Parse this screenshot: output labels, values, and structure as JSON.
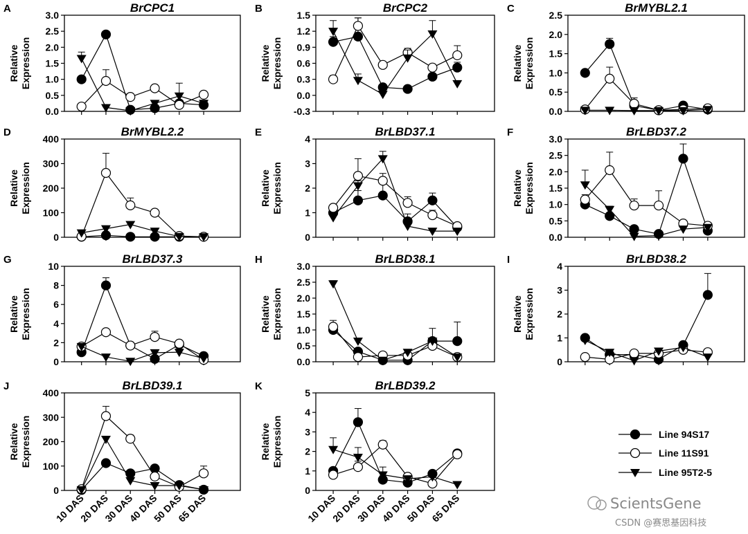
{
  "x_categories": [
    "10 DAS",
    "20 DAS",
    "30 DAS",
    "40 DAS",
    "50 DAS",
    "65 DAS"
  ],
  "y_label_line1": "Relative",
  "y_label_line2": "Expression",
  "legend": [
    {
      "name": "Line 94S17",
      "marker": "filled-circle"
    },
    {
      "name": "Line 11S91",
      "marker": "open-circle"
    },
    {
      "name": "Line 95T2-5",
      "marker": "filled-triangle-down"
    }
  ],
  "watermark": {
    "logo_text": "ScientsGene",
    "sub_text": "CSDN @赛思基因科技"
  },
  "chart_data": [
    {
      "type": "line",
      "letter": "A",
      "title": "BrCPC1",
      "ylim": [
        0,
        3
      ],
      "yticks": [
        "0.0",
        "0.5",
        "1.0",
        "1.5",
        "2.0",
        "2.5",
        "3.0"
      ],
      "series": [
        {
          "name": "Line 94S17",
          "values": [
            1.0,
            2.4,
            0.05,
            0.1,
            0.25,
            0.2
          ],
          "err": [
            0.05,
            0.05,
            0.03,
            0.05,
            0.1,
            0.05
          ]
        },
        {
          "name": "Line 11S91",
          "values": [
            0.15,
            0.95,
            0.45,
            0.72,
            0.2,
            0.52
          ],
          "err": [
            0.03,
            0.35,
            0.05,
            0.05,
            0.1,
            0.05
          ]
        },
        {
          "name": "Line 95T2-5",
          "values": [
            1.65,
            0.12,
            0.02,
            0.25,
            0.48,
            0.25
          ],
          "err": [
            0.2,
            0.02,
            0.02,
            0.05,
            0.4,
            0.1
          ]
        }
      ]
    },
    {
      "type": "line",
      "letter": "B",
      "title": "BrCPC2",
      "ylim": [
        -0.3,
        1.5
      ],
      "yticks": [
        "-0.3",
        "0.0",
        "0.3",
        "0.6",
        "0.9",
        "1.2",
        "1.5"
      ],
      "series": [
        {
          "name": "Line 94S17",
          "values": [
            1.0,
            1.1,
            0.15,
            0.12,
            0.35,
            0.52
          ],
          "err": [
            0.1,
            0.35,
            0.05,
            0.03,
            0.05,
            0.1
          ]
        },
        {
          "name": "Line 11S91",
          "values": [
            0.3,
            1.3,
            0.57,
            0.8,
            0.52,
            0.75
          ],
          "err": [
            0.07,
            0.15,
            0.05,
            0.08,
            0.05,
            0.18
          ]
        },
        {
          "name": "Line 95T2-5",
          "values": [
            1.2,
            0.28,
            0.02,
            0.7,
            1.15,
            0.22
          ],
          "err": [
            0.2,
            0.12,
            0.02,
            0.15,
            0.25,
            0.05
          ]
        }
      ]
    },
    {
      "type": "line",
      "letter": "C",
      "title": "BrMYBL2.1",
      "ylim": [
        0,
        2.5
      ],
      "yticks": [
        "0.0",
        "0.5",
        "1.0",
        "1.5",
        "2.0",
        "2.5"
      ],
      "series": [
        {
          "name": "Line 94S17",
          "values": [
            1.0,
            1.75,
            0.15,
            0.03,
            0.15,
            0.05
          ],
          "err": [
            0.05,
            0.15,
            0.05,
            0.02,
            0.03,
            0.02
          ]
        },
        {
          "name": "Line 11S91",
          "values": [
            0.05,
            0.85,
            0.2,
            0.03,
            0.05,
            0.08
          ],
          "err": [
            0.02,
            0.3,
            0.15,
            0.02,
            0.02,
            0.02
          ]
        },
        {
          "name": "Line 95T2-5",
          "values": [
            0.03,
            0.03,
            0.02,
            0.02,
            0.02,
            0.05
          ],
          "err": [
            0.01,
            0.01,
            0.01,
            0.01,
            0.01,
            0.01
          ]
        }
      ]
    },
    {
      "type": "line",
      "letter": "D",
      "title": "BrMYBL2.2",
      "ylim": [
        0,
        400
      ],
      "yticks": [
        "0",
        "100",
        "200",
        "300",
        "400"
      ],
      "series": [
        {
          "name": "Line 94S17",
          "values": [
            2,
            8,
            2,
            2,
            2,
            2
          ],
          "err": [
            1,
            3,
            1,
            1,
            1,
            1
          ]
        },
        {
          "name": "Line 11S91",
          "values": [
            3,
            262,
            130,
            100,
            5,
            2
          ],
          "err": [
            1,
            80,
            30,
            8,
            2,
            1
          ]
        },
        {
          "name": "Line 95T2-5",
          "values": [
            18,
            35,
            52,
            25,
            3,
            2
          ],
          "err": [
            3,
            8,
            8,
            5,
            1,
            1
          ]
        }
      ]
    },
    {
      "type": "line",
      "letter": "E",
      "title": "BrLBD37.1",
      "ylim": [
        0,
        4
      ],
      "yticks": [
        "0",
        "1",
        "2",
        "3",
        "4"
      ],
      "series": [
        {
          "name": "Line 94S17",
          "values": [
            1.0,
            1.5,
            1.7,
            0.65,
            1.5,
            0.4
          ],
          "err": [
            0.1,
            0.4,
            0.7,
            0.3,
            0.3,
            0.1
          ]
        },
        {
          "name": "Line 11S91",
          "values": [
            1.2,
            2.5,
            2.3,
            1.4,
            0.9,
            0.45
          ],
          "err": [
            0.1,
            0.7,
            0.3,
            0.25,
            0.2,
            0.1
          ]
        },
        {
          "name": "Line 95T2-5",
          "values": [
            0.8,
            2.1,
            3.2,
            0.45,
            0.25,
            0.25
          ],
          "err": [
            0.1,
            0.2,
            0.3,
            0.1,
            0.05,
            0.05
          ]
        }
      ]
    },
    {
      "type": "line",
      "letter": "F",
      "title": "BrLBD37.2",
      "ylim": [
        0,
        3
      ],
      "yticks": [
        "0.0",
        "0.5",
        "1.0",
        "1.5",
        "2.0",
        "2.5",
        "3.0"
      ],
      "series": [
        {
          "name": "Line 94S17",
          "values": [
            1.0,
            0.65,
            0.25,
            0.1,
            2.4,
            0.2
          ],
          "err": [
            0.05,
            0.05,
            0.05,
            0.03,
            0.45,
            0.05
          ]
        },
        {
          "name": "Line 11S91",
          "values": [
            1.15,
            2.05,
            0.97,
            0.97,
            0.42,
            0.35
          ],
          "err": [
            0.15,
            0.55,
            0.2,
            0.45,
            0.05,
            0.05
          ]
        },
        {
          "name": "Line 95T2-5",
          "values": [
            1.6,
            0.85,
            0.03,
            0.05,
            0.25,
            0.3
          ],
          "err": [
            0.45,
            0.1,
            0.02,
            0.02,
            0.05,
            0.05
          ]
        }
      ]
    },
    {
      "type": "line",
      "letter": "G",
      "title": "BrLBD37.3",
      "ylim": [
        0,
        10
      ],
      "yticks": [
        "0",
        "2",
        "4",
        "6",
        "8",
        "10"
      ],
      "series": [
        {
          "name": "Line 94S17",
          "values": [
            1.0,
            8.0,
            1.7,
            0.3,
            1.8,
            0.6
          ],
          "err": [
            0.1,
            0.8,
            0.2,
            0.2,
            0.3,
            0.1
          ]
        },
        {
          "name": "Line 11S91",
          "values": [
            1.6,
            3.1,
            1.7,
            2.6,
            1.9,
            0.2
          ],
          "err": [
            0.2,
            0.3,
            0.2,
            0.6,
            0.3,
            0.1
          ]
        },
        {
          "name": "Line 95T2-5",
          "values": [
            1.6,
            0.5,
            0.05,
            0.95,
            1.0,
            0.35
          ],
          "err": [
            0.2,
            0.1,
            0.02,
            0.3,
            0.2,
            0.1
          ]
        }
      ]
    },
    {
      "type": "line",
      "letter": "H",
      "title": "BrLBD38.1",
      "ylim": [
        0,
        3
      ],
      "yticks": [
        "0.0",
        "0.5",
        "1.0",
        "1.5",
        "2.0",
        "2.5",
        "3.0"
      ],
      "series": [
        {
          "name": "Line 94S17",
          "values": [
            1.0,
            0.32,
            0.05,
            0.05,
            0.65,
            0.65
          ],
          "err": [
            0.05,
            0.05,
            0.02,
            0.03,
            0.4,
            0.6
          ]
        },
        {
          "name": "Line 11S91",
          "values": [
            1.1,
            0.15,
            0.2,
            0.2,
            0.5,
            0.15
          ],
          "err": [
            0.2,
            0.05,
            0.05,
            0.05,
            0.15,
            0.05
          ]
        },
        {
          "name": "Line 95T2-5",
          "values": [
            2.45,
            0.65,
            0.05,
            0.3,
            0.65,
            0.15
          ],
          "err": [
            0.1,
            0.05,
            0.02,
            0.05,
            0.1,
            0.05
          ]
        }
      ]
    },
    {
      "type": "line",
      "letter": "I",
      "title": "BrLBD38.2",
      "ylim": [
        0,
        4
      ],
      "yticks": [
        "0",
        "1",
        "2",
        "3",
        "4"
      ],
      "series": [
        {
          "name": "Line 94S17",
          "values": [
            1.0,
            0.3,
            0.3,
            0.1,
            0.7,
            2.8
          ],
          "err": [
            0.1,
            0.05,
            0.05,
            0.05,
            0.1,
            0.9
          ]
        },
        {
          "name": "Line 11S91",
          "values": [
            0.2,
            0.1,
            0.35,
            0.35,
            0.5,
            0.4
          ],
          "err": [
            0.05,
            0.05,
            0.05,
            0.05,
            0.1,
            0.05
          ]
        },
        {
          "name": "Line 95T2-5",
          "values": [
            0.9,
            0.4,
            0.05,
            0.45,
            0.6,
            0.2
          ],
          "err": [
            0.2,
            0.05,
            0.02,
            0.1,
            0.1,
            0.05
          ]
        }
      ]
    },
    {
      "type": "line",
      "letter": "J",
      "title": "BrLBD39.1",
      "ylim": [
        0,
        400
      ],
      "yticks": [
        "0",
        "100",
        "200",
        "300",
        "400"
      ],
      "series": [
        {
          "name": "Line 94S17",
          "values": [
            2,
            112,
            70,
            90,
            22,
            3
          ],
          "err": [
            1,
            8,
            8,
            12,
            5,
            1
          ]
        },
        {
          "name": "Line 11S91",
          "values": [
            5,
            305,
            212,
            57,
            15,
            70
          ],
          "err": [
            1,
            40,
            15,
            10,
            5,
            30
          ]
        },
        {
          "name": "Line 95T2-5",
          "values": [
            3,
            210,
            40,
            20,
            20,
            3
          ],
          "err": [
            1,
            10,
            5,
            5,
            5,
            1
          ]
        }
      ]
    },
    {
      "type": "line",
      "letter": "K",
      "title": "BrLBD39.2",
      "ylim": [
        0,
        5
      ],
      "yticks": [
        "0",
        "1",
        "2",
        "3",
        "4",
        "5"
      ],
      "series": [
        {
          "name": "Line 94S17",
          "values": [
            1.0,
            3.5,
            0.55,
            0.4,
            0.85,
            1.9
          ],
          "err": [
            0.1,
            0.7,
            0.2,
            0.1,
            0.15,
            0.15
          ]
        },
        {
          "name": "Line 11S91",
          "values": [
            0.8,
            1.2,
            2.35,
            0.7,
            0.35,
            1.85
          ],
          "err": [
            0.1,
            0.3,
            0.2,
            0.1,
            0.05,
            0.1
          ]
        },
        {
          "name": "Line 95T2-5",
          "values": [
            2.1,
            1.7,
            0.8,
            0.6,
            0.7,
            0.3
          ],
          "err": [
            0.6,
            0.5,
            0.4,
            0.1,
            0.1,
            0.05
          ]
        }
      ]
    }
  ]
}
